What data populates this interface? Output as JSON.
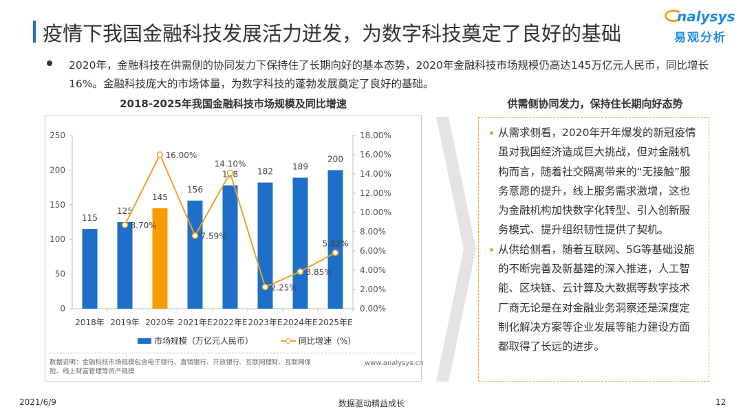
{
  "title": "疫情下我国金融科技发展活力迸发，为数字科技奠定了良好的基础",
  "logo": {
    "en": "nalysys",
    "cn": "易观分析"
  },
  "bullet": "2020年，金融科技在供需侧的协同发力下保持住了长期向好的基本态势，2020年金融科技市场规模仍高达145万亿元人民币，同比增长16%。金融科技庞大的市场体量，为数字科技的蓬勃发展奠定了良好的基础。",
  "chart_data": {
    "type": "bar+line",
    "title": "2018-2025年我国金融科技市场规模及同比增速",
    "categories": [
      "2018年",
      "2019年",
      "2020年",
      "2021年E",
      "2022年E",
      "2023年E",
      "2024年E",
      "2025年E"
    ],
    "series": [
      {
        "name": "市场规模（万亿元人民币）",
        "type": "bar",
        "axis": "left",
        "values": [
          115,
          125,
          145,
          156,
          178,
          182,
          189,
          200
        ],
        "color": "#1e6fc8",
        "highlight": {
          "index": 2,
          "color": "#f59c00"
        }
      },
      {
        "name": "同比增速（%）",
        "type": "line",
        "axis": "right",
        "values": [
          null,
          8.7,
          16.0,
          7.59,
          14.1,
          2.25,
          3.85,
          5.82
        ],
        "labels": [
          "",
          "8.70%",
          "16.00%",
          "7.59%",
          "14.10%",
          "2.25%",
          "3.85%",
          "5.82%"
        ],
        "color": "#f0a020"
      }
    ],
    "yleft": {
      "range": [
        0,
        250
      ],
      "ticks": [
        "0",
        "50",
        "100",
        "150",
        "200",
        "250"
      ]
    },
    "yright": {
      "range": [
        0,
        18
      ],
      "ticks": [
        "0.00%",
        "2.00%",
        "4.00%",
        "6.00%",
        "8.00%",
        "10.00%",
        "12.00%",
        "14.00%",
        "16.00%",
        "18.00%"
      ]
    },
    "grid": false,
    "legend": "bottom"
  },
  "note": "数据说明：金融科技市场规模包含电子银行、直销银行、开放银行、互联网理财、互联网保险、线上财富管理等资产规模",
  "website": "www.analysys.cn",
  "right": {
    "title": "供需侧协同发力，保持住长期向好态势",
    "points": [
      "从需求侧看，2020年开年爆发的新冠疫情虽对我国经济造成巨大挑战，但对金融机构而言，随着社交隔离带来的“无接触”服务意愿的提升，线上服务需求激增，这也为金融机构加快数字化转型、引入创新服务模式、提升组织韧性提供了契机。",
      "从供给侧看，随着互联网、5G等基础设施的不断完善及新基建的深入推进，人工智能、区块链、云计算及大数据等数字技术厂商无论是在对金融业务洞察还是深度定制化解决方案等企业发展等能力建设方面都取得了长远的进步。"
    ]
  },
  "footer": {
    "date": "2021/6/9",
    "slogan": "数据驱动精益成长",
    "page": "12"
  }
}
